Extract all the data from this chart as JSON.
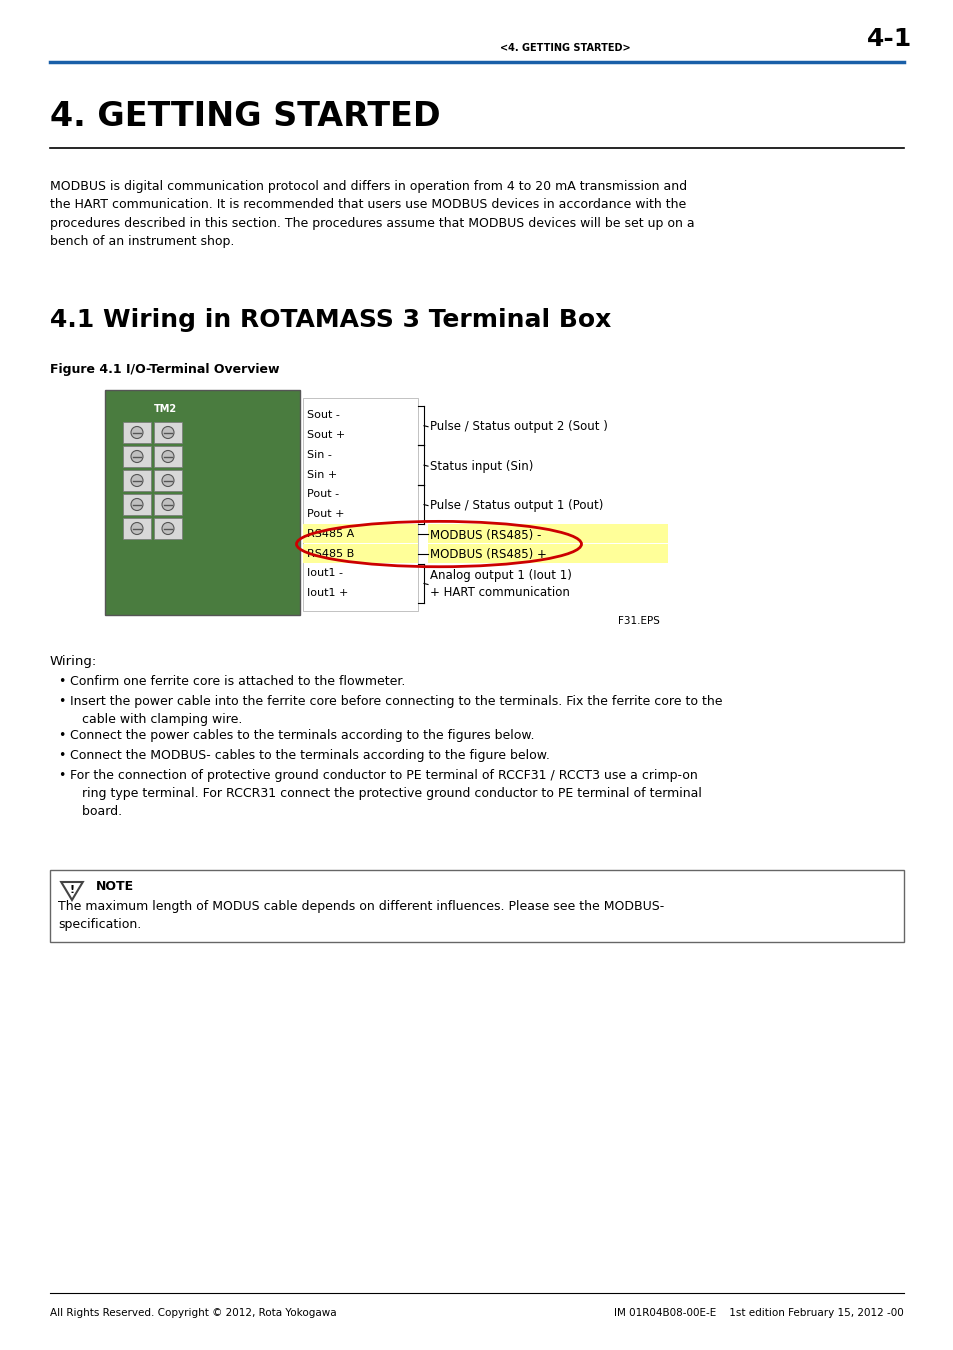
{
  "page_header_text": "<4. GETTING STARTED>",
  "page_number": "4-1",
  "header_line_color": "#1a5fa8",
  "title": "4. GETTING STARTED",
  "section_title": "4.1 Wiring in ROTAMASS 3 Terminal Box",
  "figure_caption": "Figure 4.1 I/O-Terminal Overview",
  "figure_label": "F31.EPS",
  "intro_text": "MODBUS is digital communication protocol and differs in operation from 4 to 20 mA transmission and\nthe HART communication. It is recommended that users use MODBUS devices in accordance with the\nprocedures described in this section. The procedures assume that MODBUS devices will be set up on a\nbench of an instrument shop.",
  "terminal_labels": [
    "Sout -",
    "Sout +",
    "Sin -",
    "Sin +",
    "Pout -",
    "Pout +",
    "RS485 A",
    "RS485 B",
    "Iout1 -",
    "Iout1 +"
  ],
  "wiring_title": "Wiring:",
  "wiring_bullets": [
    "Confirm one ferrite core is attached to the flowmeter.",
    "Insert the power cable into the ferrite core before connecting to the terminals. Fix the ferrite core to the\n   cable with clamping wire.",
    "Connect the power cables to the terminals according to the figures below.",
    "Connect the MODBUS- cables to the terminals according to the figure below.",
    "For the connection of protective ground conductor to PE terminal of RCCF31 / RCCT3 use a crimp-on\n   ring type terminal. For RCCR31 connect the protective ground conductor to PE terminal of terminal\n   board."
  ],
  "note_title": "NOTE",
  "note_text": "The maximum length of MODUS cable depends on different influences. Please see the MODBUS-\nspecification.",
  "footer_left": "All Rights Reserved. Copyright © 2012, Rota Yokogawa",
  "footer_right": "IM 01R04B08-00E-E    1st edition February 15, 2012 -00",
  "background_color": "#ffffff",
  "text_color": "#000000",
  "highlight_yellow": "#ffff99",
  "circle_color": "#cc0000"
}
